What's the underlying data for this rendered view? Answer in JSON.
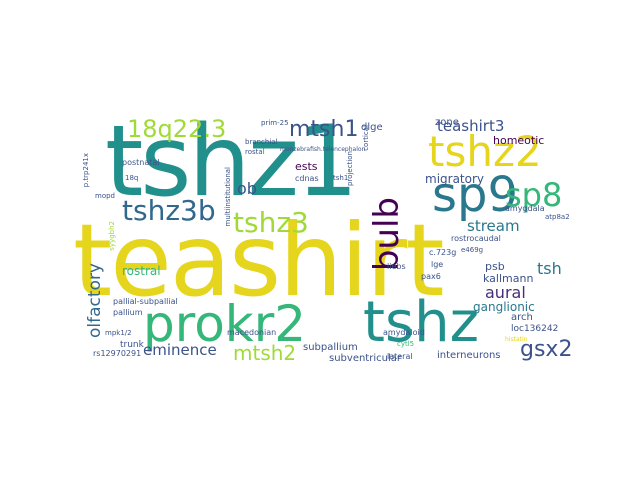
{
  "palette": {
    "teal": "#21908c",
    "teal_dark": "#2a788e",
    "green": "#35b779",
    "lime": "#a0da39",
    "yellow": "#e6d51d",
    "blue": "#3b528b",
    "indigo": "#31688e",
    "purple": "#440154",
    "violet": "#472c7a"
  },
  "words": {
    "tshz1": "tshz1",
    "teashirt": "teashirt",
    "prokr2": "prokr2",
    "tshz": "tshz",
    "sp9": "sp9",
    "tshz2": "tshz2",
    "sp8": "sp8",
    "bulb": "bulb",
    "tshz3b": "tshz3b",
    "tshz3": "tshz3",
    "q18q22": "18q22.3",
    "mtsh1": "mtsh1",
    "mtsh2": "mtsh2",
    "gsx2": "gsx2",
    "teashirt3": "teashirt3",
    "olfactory": "olfactory",
    "eminence": "eminence",
    "stream": "stream",
    "aural": "aural",
    "tsh": "tsh",
    "ob": "ob",
    "rostral": "rostral",
    "ests": "ests",
    "migratory": "migratory",
    "homeotic": "homeotic",
    "zone": "zone",
    "dlge": "dlge",
    "ganglionic": "ganglionic",
    "kallmann": "kallmann",
    "psb": "psb",
    "subpallium": "subpallium",
    "subventricular": "subventricular",
    "interneurons": "interneurons",
    "trunk": "trunk",
    "amygdala": "amygdala",
    "rostrocaudal": "rostrocaudal",
    "cdnas": "cdnas",
    "postnatal": "postnatal",
    "pallial": "pallial-subpallial",
    "pallium": "pallium",
    "mpk": "mpk1/2",
    "rs": "rs12970291",
    "loc": "loc136242",
    "arch": "arch",
    "lge": "lge",
    "pax6": "pax6",
    "liebs": "liebs",
    "c723g": "c.723g",
    "e469g": "e469g",
    "amydaloid": "amydaloid",
    "macedonian": "macedonian",
    "lateral": "lateral",
    "cortical": "cortical",
    "projection": "projection",
    "multi": "multiinstitutional",
    "branchial": "branchial",
    "mopd": "mopd",
    "atp8a2": "atp8a2",
    "prim": "prim-25",
    "tq": "18q",
    "rostal": "rostal",
    "mon": "monzebrafish.telencephalon",
    "cytl5": "cytl5",
    "tsh1": "tsh1",
    "syygl": "syygbh2",
    "ptrp": "p.trp241x",
    "histatin": "histatin"
  }
}
